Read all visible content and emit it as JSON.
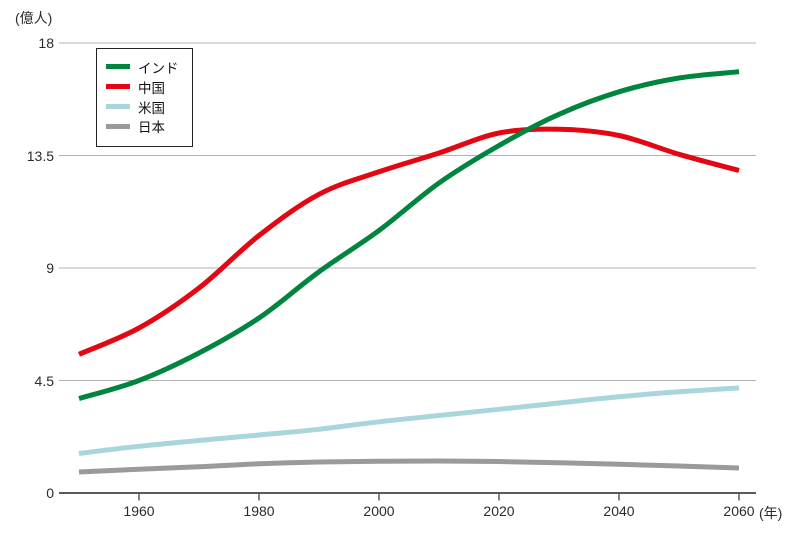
{
  "chart_data": {
    "type": "line",
    "title": "",
    "unit_label": "(億人)",
    "x_axis_unit_label": "(年)",
    "x": [
      1950,
      1960,
      1970,
      1980,
      1990,
      2000,
      2010,
      2020,
      2030,
      2040,
      2050,
      2060
    ],
    "xlim": [
      1950,
      2060
    ],
    "ylim": [
      0,
      18
    ],
    "grid": true,
    "legend_position": "top-left",
    "x_ticks": [
      {
        "value": 1960,
        "label": "1960"
      },
      {
        "value": 1980,
        "label": "1980"
      },
      {
        "value": 2000,
        "label": "2000"
      },
      {
        "value": 2020,
        "label": "2020"
      },
      {
        "value": 2040,
        "label": "2040"
      },
      {
        "value": 2060,
        "label": "2060"
      }
    ],
    "y_ticks": [
      {
        "value": 18,
        "label": "18"
      },
      {
        "value": 13.5,
        "label": "13.5"
      },
      {
        "value": 9,
        "label": "9"
      },
      {
        "value": 4.5,
        "label": "4.5"
      },
      {
        "value": 0,
        "label": "0"
      }
    ],
    "series": [
      {
        "id": "india",
        "name": "インド",
        "color": "#00853E",
        "values": [
          3.78,
          4.5,
          5.6,
          7.0,
          8.85,
          10.5,
          12.4,
          13.9,
          15.15,
          16.05,
          16.6,
          16.85
        ]
      },
      {
        "id": "china",
        "name": "中国",
        "color": "#E30613",
        "values": [
          5.55,
          6.6,
          8.2,
          10.3,
          11.95,
          12.85,
          13.6,
          14.4,
          14.55,
          14.3,
          13.55,
          12.9
        ]
      },
      {
        "id": "usa",
        "name": "米国",
        "color": "#A9D6DC",
        "values": [
          1.58,
          1.87,
          2.1,
          2.32,
          2.55,
          2.85,
          3.1,
          3.35,
          3.6,
          3.85,
          4.05,
          4.2
        ]
      },
      {
        "id": "japan",
        "name": "日本",
        "color": "#9A9A9B",
        "values": [
          0.84,
          0.95,
          1.05,
          1.17,
          1.24,
          1.27,
          1.28,
          1.26,
          1.21,
          1.15,
          1.08,
          1.0
        ]
      }
    ],
    "colors": {
      "gridline": "#B1B1B1",
      "axis": "#595A5C",
      "text": "#2B2B2B"
    }
  }
}
